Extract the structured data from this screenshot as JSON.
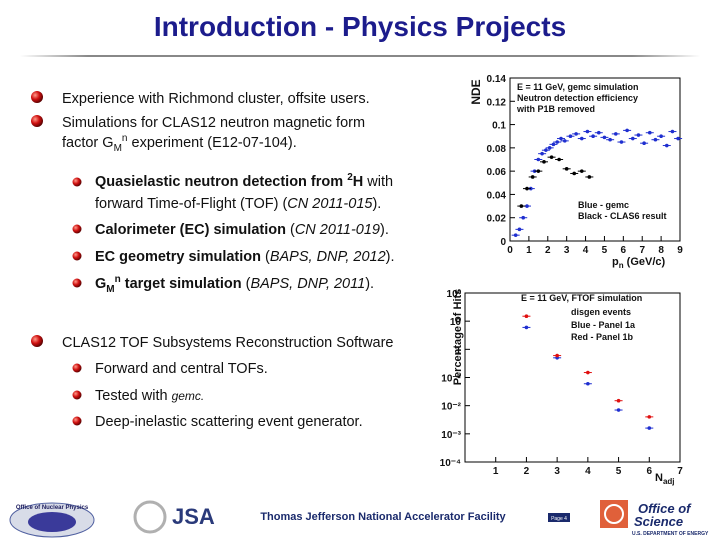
{
  "title": "Introduction - Physics Projects",
  "items": [
    {
      "lines": [
        [
          "Experience with Richmond cluster, offsite users."
        ]
      ]
    },
    {
      "lines": [
        [
          "Simulations for CLAS12  neutron  magnetic form"
        ],
        [
          "factor G",
          "M",
          "n",
          " experiment (E12-07-104)."
        ]
      ]
    },
    {
      "lines": [
        [
          "Quasielastic neutron detection from ",
          "2",
          "H",
          "  with"
        ],
        [
          "forward Time-of-Flight (TOF) (",
          "CN 2011-015",
          ")."
        ]
      ]
    },
    {
      "lines": [
        [
          "Calorimeter (EC) simulation",
          " (",
          "CN 2011-019",
          ")."
        ]
      ]
    },
    {
      "lines": [
        [
          "EC  geometry  simulation",
          "  (",
          "BAPS, DNP, 2012",
          ")."
        ]
      ]
    },
    {
      "lines": [
        [
          "G",
          "M",
          "n",
          " target simulation",
          " (",
          "BAPS, DNP, 2011",
          ")."
        ]
      ]
    },
    {
      "lines": [
        [
          "CLAS12 TOF Subsystems Reconstruction Software"
        ]
      ]
    },
    {
      "lines": [
        [
          "Forward and central TOFs."
        ]
      ]
    },
    {
      "lines": [
        [
          "Tested with ",
          "gemc."
        ]
      ]
    },
    {
      "lines": [
        [
          "Deep-inelastic scattering event generator."
        ]
      ]
    }
  ],
  "footer": {
    "lab": "Thomas Jefferson National Accelerator Facility",
    "page": "Page 4",
    "logos": {
      "nuclear": "Office of Nuclear Physics",
      "jsa": "JSA",
      "office": "Office of",
      "science": "Science",
      "doe": "U.S. DEPARTMENT OF ENERGY"
    }
  },
  "chart_data": [
    {
      "type": "scatter",
      "ylabel": "NDE",
      "xlabel": [
        "p",
        "n",
        " (GeV/c)"
      ],
      "annotations": [
        "E = 11 GeV, gemc simulation",
        "Neutron detection efficiency",
        "with P1B removed"
      ],
      "xlim": [
        0,
        9
      ],
      "xticks": [
        0,
        1,
        2,
        3,
        4,
        5,
        6,
        7,
        8,
        9
      ],
      "ylim": [
        0,
        0.14
      ],
      "yticks": [
        0,
        0.02,
        0.04,
        0.06,
        0.08,
        0.1,
        0.12,
        0.14
      ],
      "series": [
        {
          "name": "Blue - gemc",
          "color": "#1f2fd0",
          "x": [
            0.3,
            0.5,
            0.7,
            0.9,
            1.1,
            1.3,
            1.5,
            1.7,
            1.9,
            2.1,
            2.3,
            2.5,
            2.7,
            2.9,
            3.2,
            3.5,
            3.8,
            4.1,
            4.4,
            4.7,
            5.0,
            5.3,
            5.6,
            5.9,
            6.2,
            6.5,
            6.8,
            7.1,
            7.4,
            7.7,
            8.0,
            8.3,
            8.6,
            8.9
          ],
          "values": [
            0.005,
            0.01,
            0.02,
            0.03,
            0.045,
            0.06,
            0.07,
            0.075,
            0.078,
            0.08,
            0.083,
            0.085,
            0.088,
            0.086,
            0.09,
            0.092,
            0.088,
            0.094,
            0.09,
            0.093,
            0.089,
            0.087,
            0.092,
            0.085,
            0.095,
            0.088,
            0.091,
            0.084,
            0.093,
            0.087,
            0.09,
            0.082,
            0.094,
            0.088
          ]
        },
        {
          "name": "Black - CLAS6 result",
          "color": "#000000",
          "x": [
            0.6,
            0.9,
            1.2,
            1.5,
            1.8,
            2.2,
            2.6,
            3.0,
            3.4,
            3.8,
            4.2
          ],
          "values": [
            0.03,
            0.045,
            0.055,
            0.06,
            0.068,
            0.072,
            0.07,
            0.062,
            0.058,
            0.06,
            0.055
          ]
        }
      ]
    },
    {
      "type": "scatter",
      "log_y": true,
      "ylabel": "Percentage of Hits",
      "xlabel": [
        "N",
        "adj"
      ],
      "annotations": [
        "E = 11 GeV, FTOF simulation",
        "disgen events"
      ],
      "xlim": [
        0,
        7
      ],
      "xticks": [
        1,
        2,
        3,
        4,
        5,
        6,
        7
      ],
      "ylim": [
        0.0001,
        100
      ],
      "yticks": [
        {
          "value": 0.0001,
          "label": "10⁻⁴"
        },
        {
          "value": 0.001,
          "label": "10⁻³"
        },
        {
          "value": 0.01,
          "label": "10⁻²"
        },
        {
          "value": 0.1,
          "label": "10⁻¹"
        },
        1,
        10,
        {
          "value": 100,
          "label": "10²"
        }
      ],
      "series": [
        {
          "name": "Blue - Panel 1a",
          "color": "#1f2fd0",
          "x": [
            2,
            3,
            4,
            5,
            6
          ],
          "values": [
            6,
            0.5,
            0.06,
            0.007,
            0.0016
          ]
        },
        {
          "name": "Red - Panel 1b",
          "color": "#e01010",
          "x": [
            2,
            3,
            4,
            5,
            6
          ],
          "values": [
            15,
            0.6,
            0.15,
            0.015,
            0.004
          ]
        }
      ]
    }
  ]
}
